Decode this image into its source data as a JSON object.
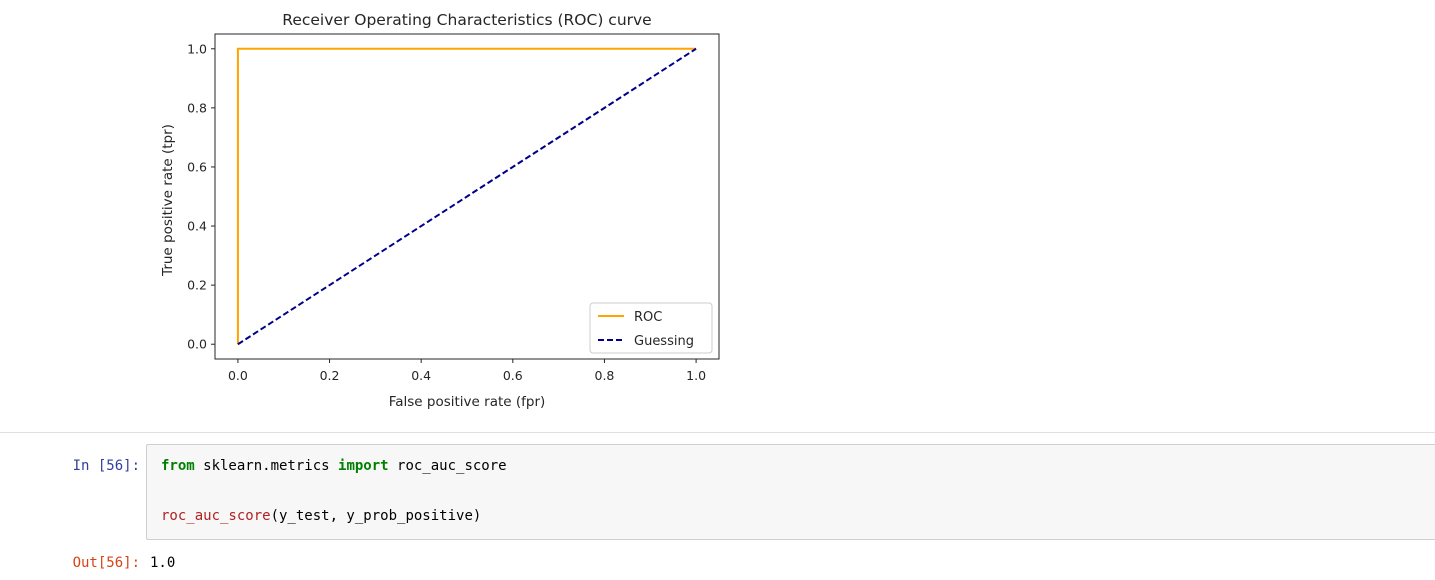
{
  "notebook": {
    "in_prompt": "In [56]:",
    "out_prompt": "Out[56]:",
    "code": {
      "line1": {
        "kw1": "from",
        "mod": " sklearn.metrics ",
        "kw2": "import",
        "name": " roc_auc_score"
      },
      "line2": {
        "fn": "roc_auc_score",
        "args": "(y_test, y_prob_positive)"
      }
    },
    "output_value": "1.0"
  },
  "chart_data": {
    "type": "line",
    "title": "Receiver Operating Characteristics (ROC) curve",
    "xlabel": "False positive rate (fpr)",
    "ylabel": "True positive rate (tpr)",
    "xlim": [
      -0.05,
      1.05
    ],
    "ylim": [
      -0.05,
      1.05
    ],
    "xticks": [
      "0.0",
      "0.2",
      "0.4",
      "0.6",
      "0.8",
      "1.0"
    ],
    "yticks": [
      "0.0",
      "0.2",
      "0.4",
      "0.6",
      "0.8",
      "1.0"
    ],
    "grid": false,
    "legend_position": "lower right",
    "series": [
      {
        "name": "ROC",
        "color": "#ffa500",
        "style": "solid",
        "x": [
          0,
          0,
          1
        ],
        "y": [
          0,
          1,
          1
        ]
      },
      {
        "name": "Guessing",
        "color": "#00008b",
        "style": "dashed",
        "x": [
          0,
          1
        ],
        "y": [
          0,
          1
        ]
      }
    ]
  }
}
